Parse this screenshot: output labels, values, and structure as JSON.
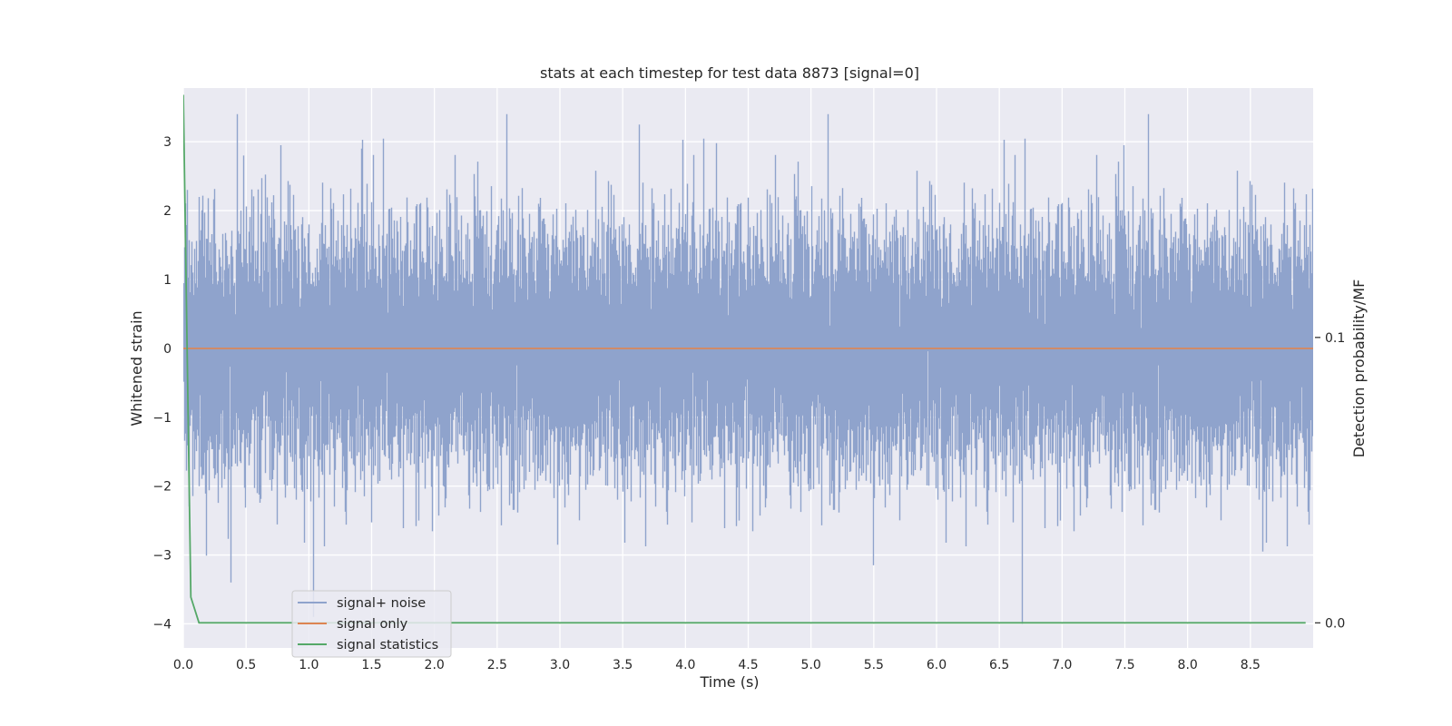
{
  "chart_data": {
    "type": "line",
    "title": "stats at each timestep for test data 8873 [signal=0]",
    "xlabel": "Time (s)",
    "ylabel": "Whitened strain",
    "ylabel_right": "Detection probability/MF",
    "xlim": [
      0.0,
      9.0
    ],
    "ylim": [
      -4.35,
      3.78
    ],
    "ylim_right": [
      -0.0088,
      0.1874
    ],
    "x_ticks": [
      "0.0",
      "0.5",
      "1.0",
      "1.5",
      "2.0",
      "2.5",
      "3.0",
      "3.5",
      "4.0",
      "4.5",
      "5.0",
      "5.5",
      "6.0",
      "6.5",
      "7.0",
      "7.5",
      "8.0",
      "8.5"
    ],
    "x_tick_values": [
      0.0,
      0.5,
      1.0,
      1.5,
      2.0,
      2.5,
      3.0,
      3.5,
      4.0,
      4.5,
      5.0,
      5.5,
      6.0,
      6.5,
      7.0,
      7.5,
      8.0,
      8.5
    ],
    "y_ticks": [
      "3",
      "2",
      "1",
      "0",
      "−1",
      "−2",
      "−3",
      "−4"
    ],
    "y_tick_values": [
      3,
      2,
      1,
      0,
      -1,
      -2,
      -3,
      -4
    ],
    "y_ticks_right": [
      "0.1",
      "0.0"
    ],
    "y_tick_values_right": [
      0.1,
      0.0
    ],
    "grid": true,
    "legend_position": "lower-left",
    "background": "#eaeaf2",
    "series": [
      {
        "name": "signal+ noise",
        "color": "#8fa3cc",
        "axis": "left",
        "sample_rate": 2048,
        "n_samples": 18432,
        "sigma": 0.85,
        "envelope": [
          -4.0,
          3.4
        ],
        "peaks": [
          {
            "x": 0.43,
            "y": 3.4
          },
          {
            "x": 0.48,
            "y": 2.8
          },
          {
            "x": 0.78,
            "y": 2.95
          },
          {
            "x": 1.42,
            "y": 2.9
          },
          {
            "x": 3.63,
            "y": 3.25
          },
          {
            "x": 4.25,
            "y": 2.98
          },
          {
            "x": 7.49,
            "y": 2.95
          },
          {
            "x": 0.38,
            "y": -3.4
          },
          {
            "x": 1.04,
            "y": -3.9
          },
          {
            "x": 2.98,
            "y": -2.85
          },
          {
            "x": 5.5,
            "y": -3.15
          },
          {
            "x": 6.68,
            "y": -4.0
          },
          {
            "x": 8.6,
            "y": -2.95
          }
        ]
      },
      {
        "name": "signal only",
        "color": "#dd8452",
        "axis": "left",
        "x": [
          0.0,
          9.0
        ],
        "values": [
          0.0,
          0.0
        ]
      },
      {
        "name": "signal statistics",
        "color": "#55a868",
        "axis": "right",
        "x": [
          0.0,
          0.06,
          0.125,
          0.25,
          0.5,
          1.0,
          2.0,
          3.0,
          4.0,
          5.0,
          6.0,
          7.0,
          8.0,
          8.94
        ],
        "values": [
          0.185,
          0.009,
          0.0,
          0.0,
          0.0,
          0.0,
          0.0,
          0.0,
          0.0,
          0.0,
          0.0,
          0.0,
          0.0,
          0.0
        ]
      }
    ]
  }
}
